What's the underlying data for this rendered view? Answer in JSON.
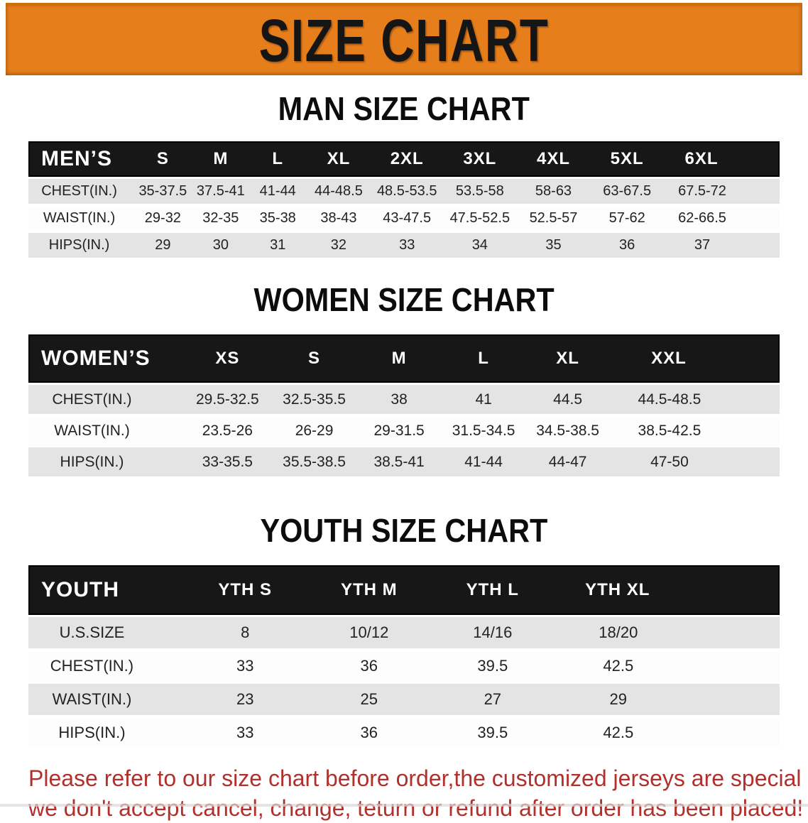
{
  "banner": {
    "title": "SIZE CHART",
    "bg_color": "#E67E1B",
    "text_color": "#151515"
  },
  "colors": {
    "table_header_bg": "#171717",
    "row_stripe_gray": "#E4E4E4",
    "notice_red": "#B1302B"
  },
  "sections": [
    {
      "title": "MAN SIZE CHART",
      "header_label": "MEN’S",
      "columns": [
        "S",
        "M",
        "L",
        "XL",
        "2XL",
        "3XL",
        "4XL",
        "5XL",
        "6XL"
      ],
      "rows": [
        {
          "label": "CHEST(IN.)",
          "values": [
            "35-37.5",
            "37.5-41",
            "41-44",
            "44-48.5",
            "48.5-53.5",
            "53.5-58",
            "58-63",
            "63-67.5",
            "67.5-72"
          ]
        },
        {
          "label": "WAIST(IN.)",
          "values": [
            "29-32",
            "32-35",
            "35-38",
            "38-43",
            "43-47.5",
            "47.5-52.5",
            "52.5-57",
            "57-62",
            "62-66.5"
          ]
        },
        {
          "label": "HIPS(IN.)",
          "values": [
            "29",
            "30",
            "31",
            "32",
            "33",
            "34",
            "35",
            "36",
            "37"
          ]
        }
      ]
    },
    {
      "title": "WOMEN SIZE CHART",
      "header_label": "WOMEN’S",
      "columns": [
        "XS",
        "S",
        "M",
        "L",
        "XL",
        "XXL"
      ],
      "rows": [
        {
          "label": "CHEST(IN.)",
          "values": [
            "29.5-32.5",
            "32.5-35.5",
            "38",
            "41",
            "44.5",
            "44.5-48.5"
          ]
        },
        {
          "label": "WAIST(IN.)",
          "values": [
            "23.5-26",
            "26-29",
            "29-31.5",
            "31.5-34.5",
            "34.5-38.5",
            "38.5-42.5"
          ]
        },
        {
          "label": "HIPS(IN.)",
          "values": [
            "33-35.5",
            "35.5-38.5",
            "38.5-41",
            "41-44",
            "44-47",
            "47-50"
          ]
        }
      ]
    },
    {
      "title": "YOUTH SIZE CHART",
      "header_label": "YOUTH",
      "columns": [
        "YTH S",
        "YTH M",
        "YTH L",
        "YTH XL"
      ],
      "rows": [
        {
          "label": "U.S.SIZE",
          "values": [
            "8",
            "10/12",
            "14/16",
            "18/20"
          ]
        },
        {
          "label": "CHEST(IN.)",
          "values": [
            "33",
            "36",
            "39.5",
            "42.5"
          ]
        },
        {
          "label": "WAIST(IN.)",
          "values": [
            "23",
            "25",
            "27",
            "29"
          ]
        },
        {
          "label": "HIPS(IN.)",
          "values": [
            "33",
            "36",
            "39.5",
            "42.5"
          ]
        }
      ]
    }
  ],
  "footer": {
    "line1": "Please refer to our size chart before order,the customized jerseys are special products,",
    "line2": "we don't accept cancel, change, teturn or refund after order has been placed!",
    "text_color": "#B1302B"
  }
}
